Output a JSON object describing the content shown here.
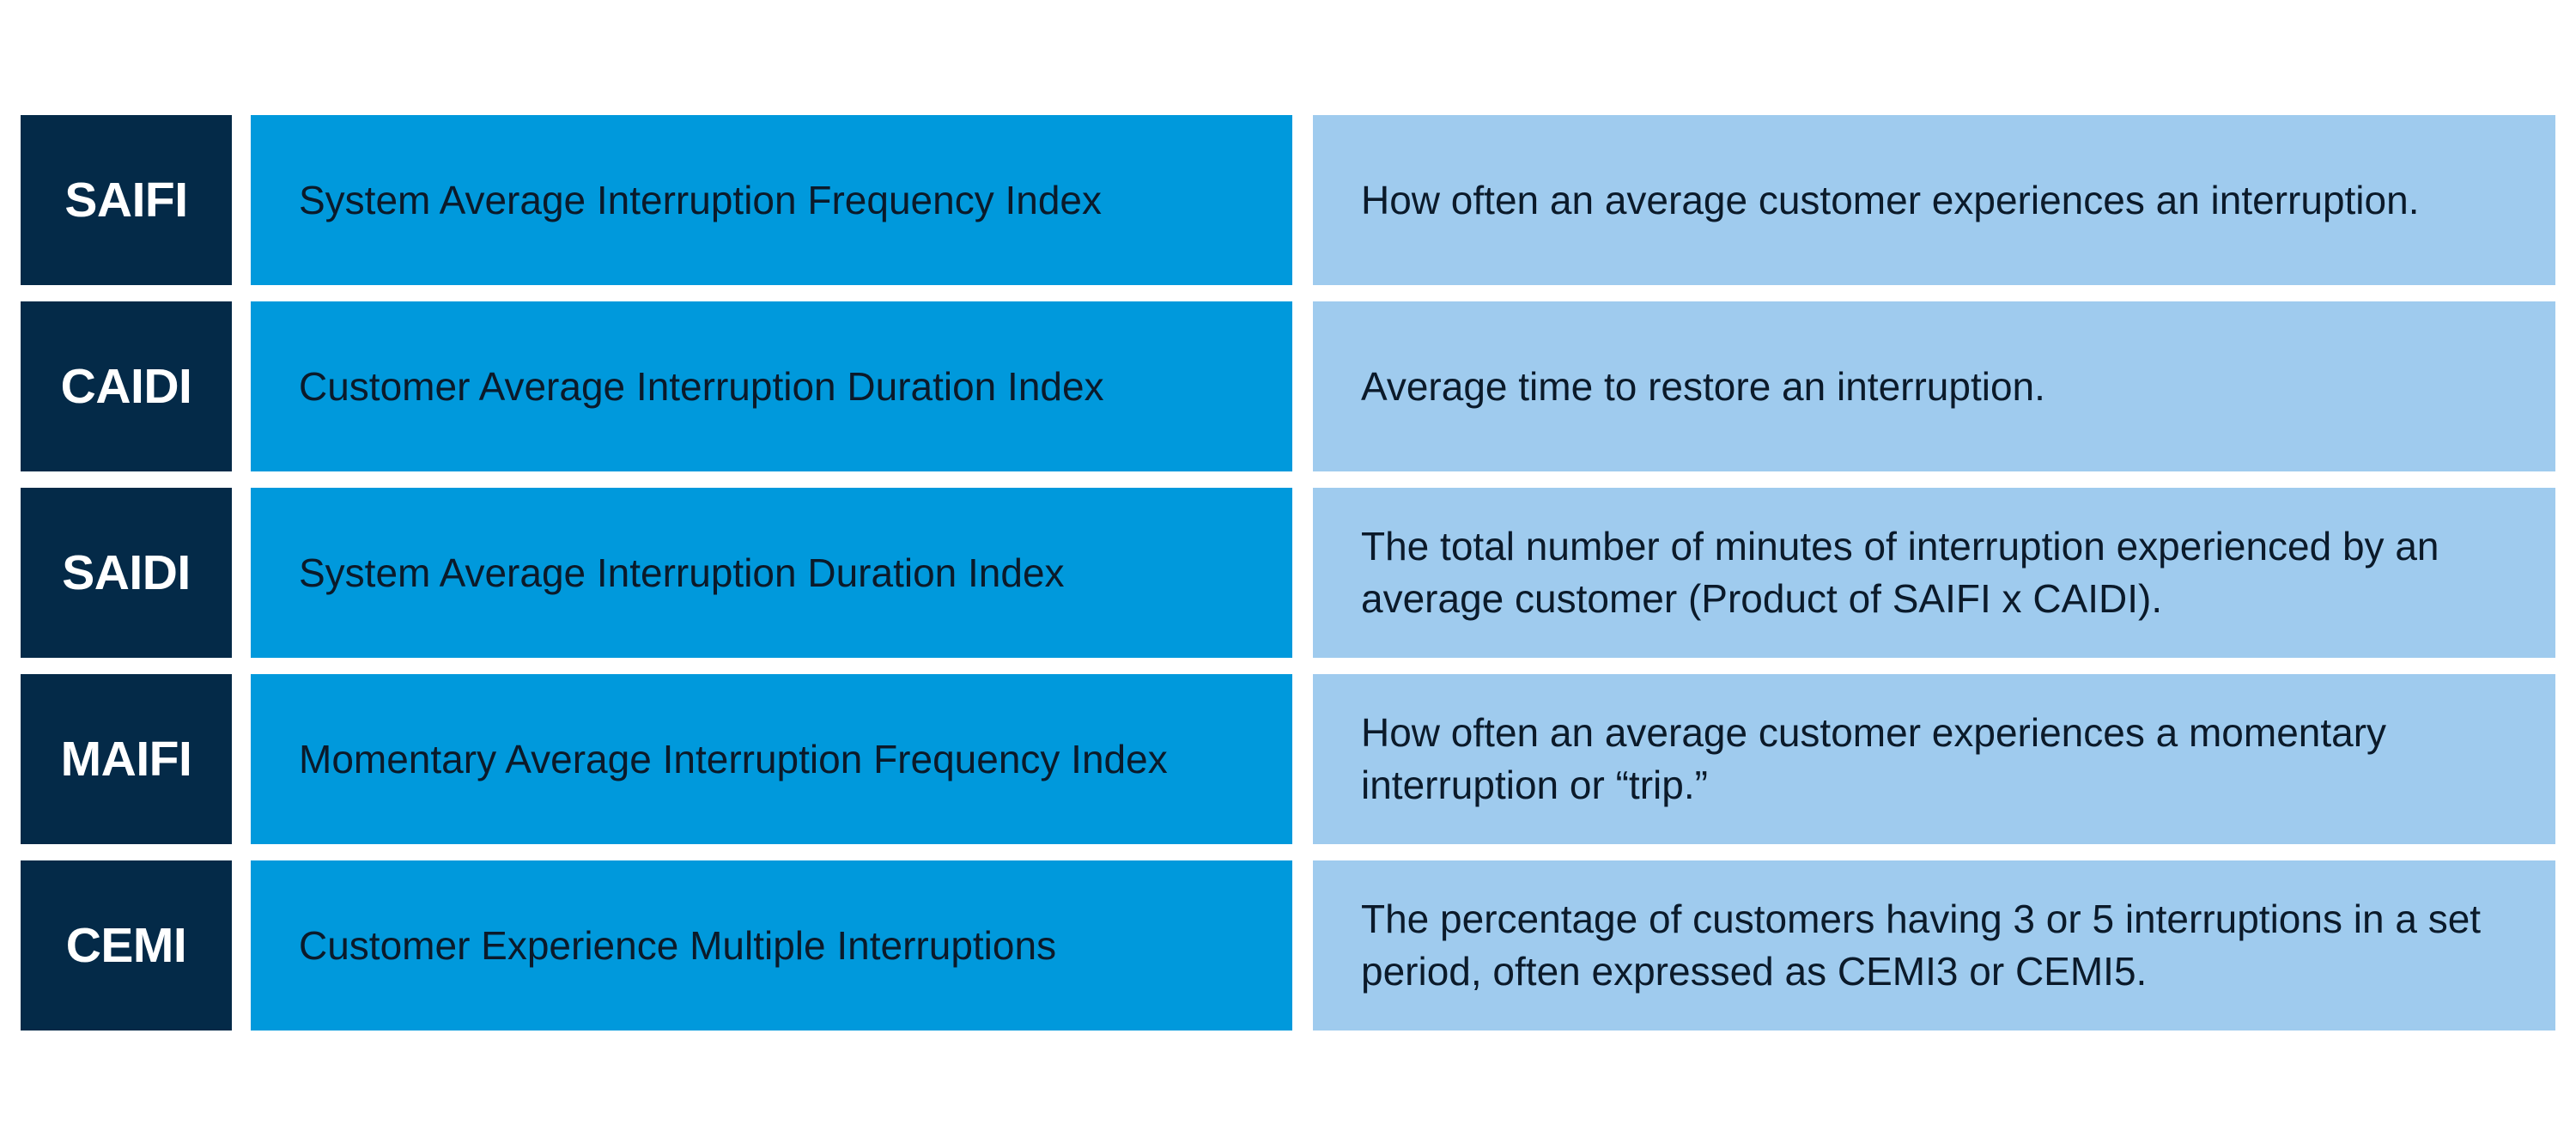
{
  "colors": {
    "abbr_bg": "#042a48",
    "name_bg": "#0099dc",
    "desc_bg": "#9fcbee",
    "page_bg": "#ffffff"
  },
  "rows": [
    {
      "abbr": "SAIFI",
      "name": "System Average Interruption Frequency Index",
      "description": "How often an average customer experiences an interruption."
    },
    {
      "abbr": "CAIDI",
      "name": "Customer Average Interruption Duration Index",
      "description": "Average time to restore an interruption."
    },
    {
      "abbr": "SAIDI",
      "name": "System Average Interruption Duration Index",
      "description": "The total number of minutes of interruption experienced by an average customer (Product of SAIFI x CAIDI)."
    },
    {
      "abbr": "MAIFI",
      "name": "Momentary Average Interruption Frequency Index",
      "description": "How often an average customer experiences a momentary interruption or “trip.”"
    },
    {
      "abbr": "CEMI",
      "name": "Customer Experience Multiple Interruptions",
      "description": "The percentage of customers having 3 or 5 interruptions in a set period, often expressed as CEMI3 or CEMI5."
    }
  ]
}
